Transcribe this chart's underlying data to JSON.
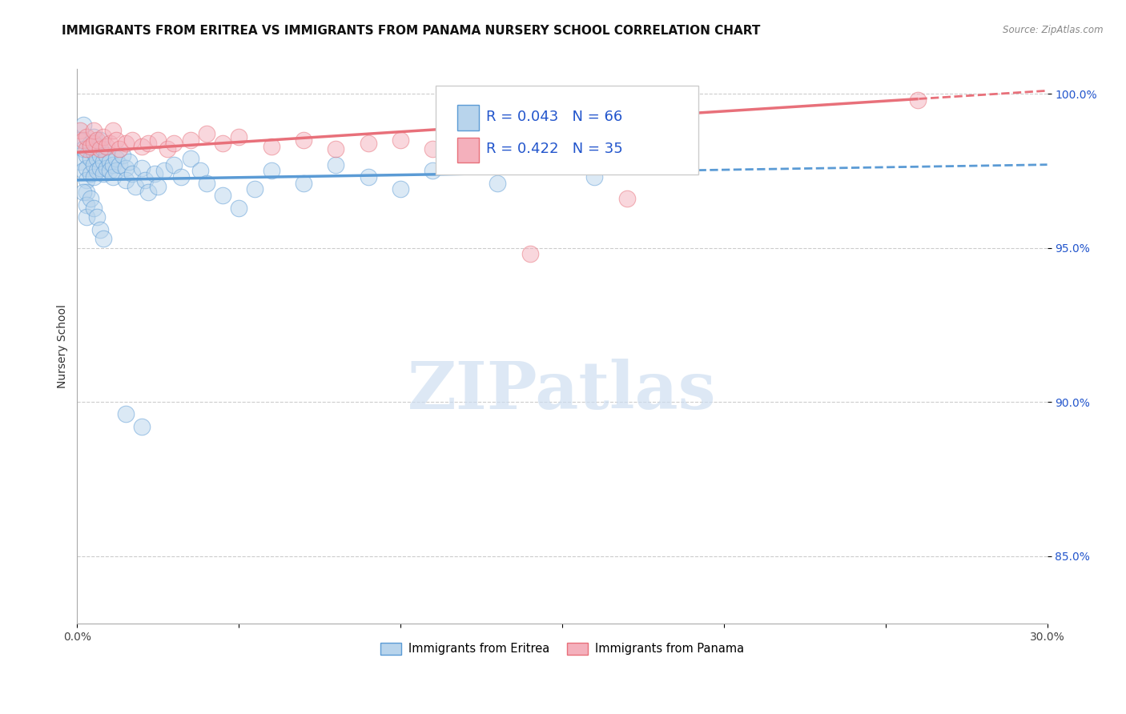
{
  "title": "IMMIGRANTS FROM ERITREA VS IMMIGRANTS FROM PANAMA NURSERY SCHOOL CORRELATION CHART",
  "source_text": "Source: ZipAtlas.com",
  "ylabel": "Nursery School",
  "xlim": [
    0.0,
    0.3
  ],
  "ylim": [
    0.828,
    1.008
  ],
  "xticks": [
    0.0,
    0.05,
    0.1,
    0.15,
    0.2,
    0.25,
    0.3
  ],
  "xticklabels": [
    "0.0%",
    "",
    "",
    "",
    "",
    "",
    "30.0%"
  ],
  "ytick_positions": [
    0.85,
    0.9,
    0.95,
    1.0
  ],
  "ytick_labels": [
    "85.0%",
    "90.0%",
    "95.0%",
    "100.0%"
  ],
  "legend_entries": [
    {
      "label": "Immigrants from Eritrea",
      "color": "#a8c8e8"
    },
    {
      "label": "Immigrants from Panama",
      "color": "#f0a0b0"
    }
  ],
  "R_eritrea": 0.043,
  "N_eritrea": 66,
  "R_panama": 0.422,
  "N_panama": 35,
  "blue_color": "#5b9bd5",
  "pink_color": "#e8707a",
  "scatter_blue": "#b8d4ec",
  "scatter_pink": "#f4b0bc",
  "eritrea_x": [
    0.001,
    0.001,
    0.002,
    0.002,
    0.002,
    0.003,
    0.003,
    0.003,
    0.003,
    0.004,
    0.004,
    0.004,
    0.005,
    0.005,
    0.005,
    0.005,
    0.006,
    0.006,
    0.006,
    0.007,
    0.007,
    0.007,
    0.008,
    0.008,
    0.008,
    0.009,
    0.009,
    0.01,
    0.01,
    0.011,
    0.011,
    0.012,
    0.012,
    0.013,
    0.014,
    0.015,
    0.015,
    0.016,
    0.017,
    0.018,
    0.02,
    0.021,
    0.022,
    0.024,
    0.025,
    0.027,
    0.03,
    0.032,
    0.035,
    0.038,
    0.04,
    0.045,
    0.05,
    0.055,
    0.06,
    0.07,
    0.08,
    0.09,
    0.1,
    0.11,
    0.13,
    0.15,
    0.16,
    0.17,
    0.015,
    0.02
  ],
  "eritrea_y": [
    0.985,
    0.978,
    0.982,
    0.975,
    0.99,
    0.98,
    0.976,
    0.972,
    0.968,
    0.984,
    0.979,
    0.974,
    0.986,
    0.981,
    0.977,
    0.973,
    0.983,
    0.979,
    0.975,
    0.985,
    0.98,
    0.976,
    0.982,
    0.978,
    0.974,
    0.98,
    0.976,
    0.978,
    0.975,
    0.977,
    0.973,
    0.979,
    0.975,
    0.977,
    0.98,
    0.976,
    0.972,
    0.978,
    0.974,
    0.97,
    0.976,
    0.972,
    0.968,
    0.974,
    0.97,
    0.975,
    0.977,
    0.973,
    0.979,
    0.975,
    0.971,
    0.967,
    0.963,
    0.969,
    0.975,
    0.971,
    0.977,
    0.973,
    0.969,
    0.975,
    0.971,
    0.977,
    0.973,
    0.979,
    0.896,
    0.892
  ],
  "eritrea_outliers_x": [
    0.002,
    0.003,
    0.003,
    0.004,
    0.005,
    0.006,
    0.007,
    0.008
  ],
  "eritrea_outliers_y": [
    0.968,
    0.964,
    0.96,
    0.966,
    0.963,
    0.96,
    0.956,
    0.953
  ],
  "panama_x": [
    0.001,
    0.002,
    0.003,
    0.003,
    0.004,
    0.005,
    0.005,
    0.006,
    0.007,
    0.008,
    0.009,
    0.01,
    0.011,
    0.012,
    0.013,
    0.015,
    0.017,
    0.02,
    0.022,
    0.025,
    0.028,
    0.03,
    0.035,
    0.04,
    0.045,
    0.05,
    0.06,
    0.07,
    0.08,
    0.09,
    0.1,
    0.11,
    0.14,
    0.17,
    0.26
  ],
  "panama_y": [
    0.988,
    0.985,
    0.982,
    0.986,
    0.983,
    0.984,
    0.988,
    0.985,
    0.982,
    0.986,
    0.983,
    0.984,
    0.988,
    0.985,
    0.982,
    0.984,
    0.985,
    0.983,
    0.984,
    0.985,
    0.982,
    0.984,
    0.985,
    0.987,
    0.984,
    0.986,
    0.983,
    0.985,
    0.982,
    0.984,
    0.985,
    0.982,
    0.948,
    0.966,
    0.998
  ],
  "trend_eritrea_x0": 0.0,
  "trend_eritrea_y0": 0.972,
  "trend_eritrea_x1": 0.3,
  "trend_eritrea_y1": 0.977,
  "trend_eritrea_solid_end": 0.17,
  "trend_panama_x0": 0.0,
  "trend_panama_y0": 0.981,
  "trend_panama_x1": 0.3,
  "trend_panama_y1": 1.001,
  "trend_panama_solid_end": 0.26,
  "watermark_text": "ZIPatlas",
  "title_fontsize": 11,
  "tick_fontsize": 10,
  "ylabel_fontsize": 10
}
